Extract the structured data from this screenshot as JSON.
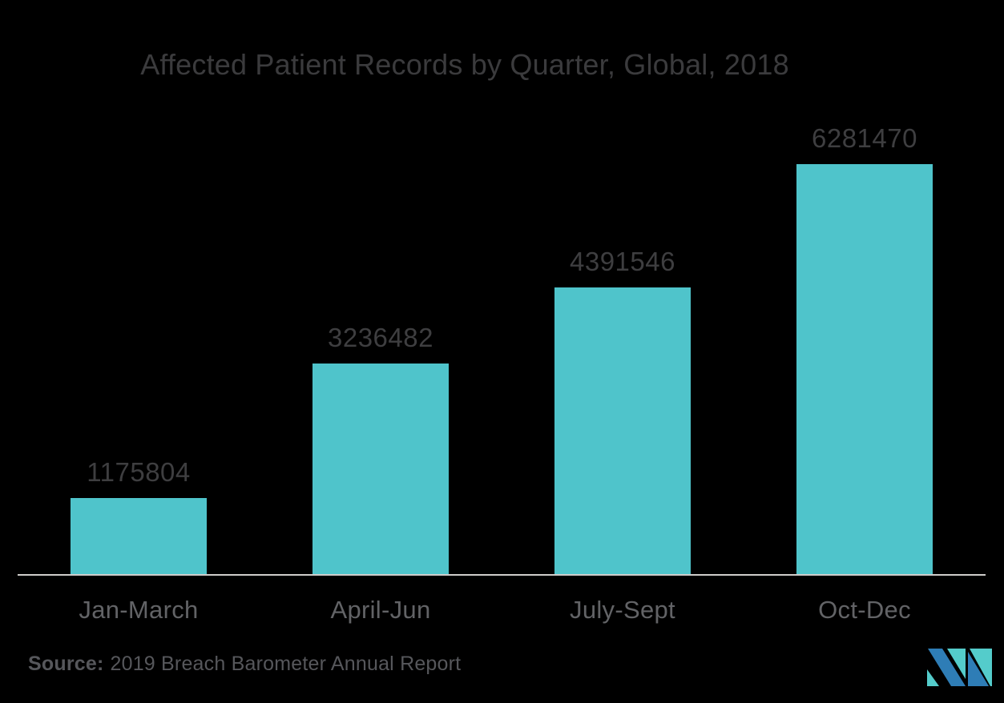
{
  "title": "Affected Patient Records by Quarter, Global, 2018",
  "source": {
    "label": "Source:",
    "text": "2019 Breach Barometer Annual Report"
  },
  "logo": {
    "name": "mordor-intelligence-logo",
    "teal": "#54CCCB",
    "blue": "#2E7DB6"
  },
  "colors": {
    "background": "#000000",
    "bar": "#4FC4CB",
    "axis_line": "#CFCDCB",
    "title_text": "#3B3B3D",
    "value_text": "#3E3E40",
    "category_text": "#626366",
    "source_text": "#56575B"
  },
  "chart_data": {
    "type": "bar",
    "title": "Affected Patient Records by Quarter, Global, 2018",
    "categories": [
      "Jan-March",
      "April-Jun",
      "July-Sept",
      "Oct-Dec"
    ],
    "values": [
      1175804,
      3236482,
      4391546,
      6281470
    ],
    "xlabel": "",
    "ylabel": "",
    "ylim": [
      0,
      6281470
    ],
    "grid": false,
    "legend": false,
    "value_labels": "above-bars",
    "bar_color": "#4FC4CB"
  }
}
